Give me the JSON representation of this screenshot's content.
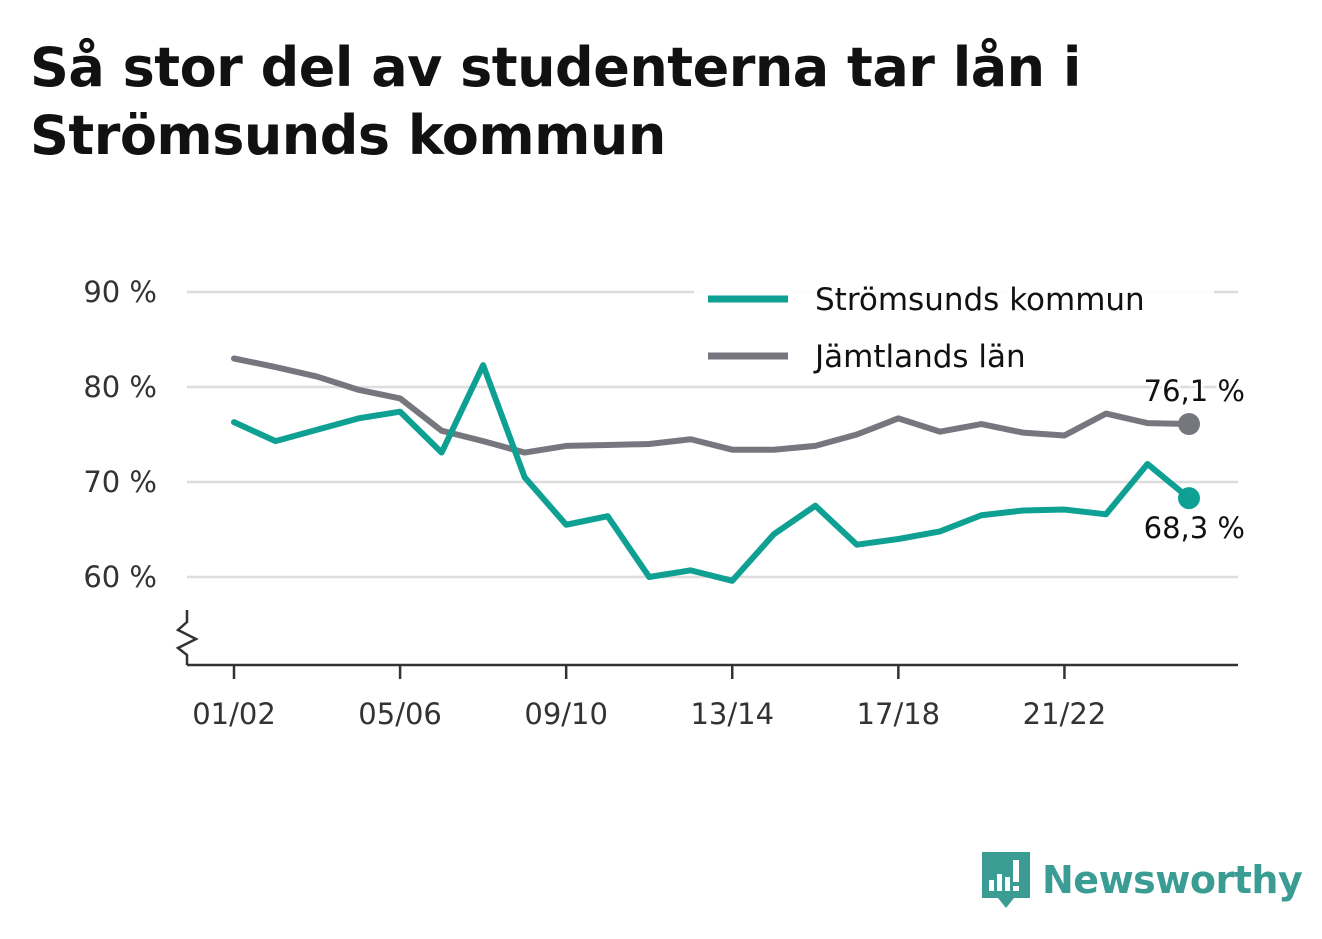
{
  "title": "Så stor del av studenterna tar lån i Strömsunds kommun",
  "brand": {
    "name": "Newsworthy",
    "icon": "newsworthy-logo-icon",
    "color": "#3a9c92"
  },
  "chart_data": {
    "type": "line",
    "title": "Så stor del av studenterna tar lån i Strömsunds kommun",
    "xlabel": "",
    "ylabel": "",
    "x": [
      "01/02",
      "02/03",
      "03/04",
      "04/05",
      "05/06",
      "06/07",
      "07/08",
      "08/09",
      "09/10",
      "10/11",
      "11/12",
      "12/13",
      "13/14",
      "14/15",
      "15/16",
      "16/17",
      "17/18",
      "18/19",
      "19/20",
      "20/21",
      "21/22",
      "22/23",
      "23/24",
      "24/25"
    ],
    "x_tick_labels": [
      "01/02",
      "05/06",
      "09/10",
      "13/14",
      "17/18",
      "21/22"
    ],
    "y_tick_labels": [
      "60 %",
      "70 %",
      "80 %",
      "90 %"
    ],
    "y_ticks": [
      60,
      70,
      80,
      90
    ],
    "ylim": [
      50.5,
      90
    ],
    "y_axis_break": true,
    "grid": true,
    "legend_position": "top-right",
    "series": [
      {
        "name": "Strömsunds kommun",
        "color": "#0ea193",
        "values": [
          76.3,
          74.3,
          75.5,
          76.7,
          77.4,
          73.1,
          82.3,
          70.5,
          65.5,
          66.4,
          60.0,
          60.7,
          59.6,
          64.5,
          67.5,
          63.4,
          64.0,
          64.8,
          66.5,
          67.0,
          67.1,
          66.6,
          71.9,
          68.3
        ],
        "end_label": "68,3 %"
      },
      {
        "name": "Jämtlands län",
        "color": "#76767e",
        "values": [
          83.0,
          82.1,
          81.1,
          79.7,
          78.8,
          75.4,
          74.3,
          73.1,
          73.8,
          73.9,
          74.0,
          74.5,
          73.4,
          73.4,
          73.8,
          75.0,
          76.7,
          75.3,
          76.1,
          75.2,
          74.9,
          77.2,
          76.2,
          76.1
        ],
        "end_label": "76,1 %"
      }
    ]
  }
}
